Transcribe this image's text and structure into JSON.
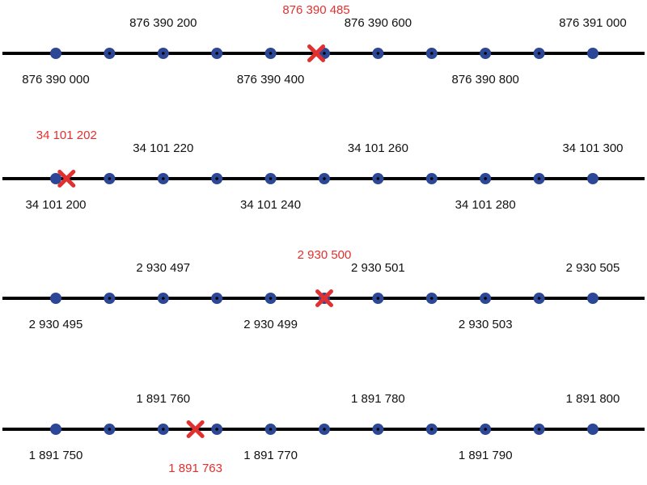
{
  "colors": {
    "line": "#000000",
    "tick": "#2d4797",
    "tick_center": "#000000",
    "label": "#111111",
    "marker": "#e0302f"
  },
  "number_lines": [
    {
      "id": "line-1",
      "ticks": [
        876390000,
        876390100,
        876390200,
        876390300,
        876390400,
        876390500,
        876390600,
        876390700,
        876390800,
        876390900,
        876391000
      ],
      "labels": [
        {
          "text": "876 390 000",
          "tick": 0
        },
        {
          "text": "876 390 200",
          "tick": 2
        },
        {
          "text": "876 390 400",
          "tick": 4
        },
        {
          "text": "876 390 600",
          "tick": 6
        },
        {
          "text": "876 390 800",
          "tick": 8
        },
        {
          "text": "876 391 000",
          "tick": 10
        }
      ],
      "marker": {
        "text": "876 390 485",
        "value": 876390485
      }
    },
    {
      "id": "line-2",
      "ticks": [
        34101200,
        34101210,
        34101220,
        34101230,
        34101240,
        34101250,
        34101260,
        34101270,
        34101280,
        34101290,
        34101300
      ],
      "labels": [
        {
          "text": "34 101 200",
          "tick": 0
        },
        {
          "text": "34 101 220",
          "tick": 2
        },
        {
          "text": "34 101 240",
          "tick": 4
        },
        {
          "text": "34 101 260",
          "tick": 6
        },
        {
          "text": "34 101 280",
          "tick": 8
        },
        {
          "text": "34 101 300",
          "tick": 10
        }
      ],
      "marker": {
        "text": "34 101 202",
        "value": 34101202
      }
    },
    {
      "id": "line-3",
      "ticks": [
        2930495,
        2930496,
        2930497,
        2930498,
        2930499,
        2930500,
        2930501,
        2930502,
        2930503,
        2930504,
        2930505
      ],
      "labels": [
        {
          "text": "2 930 495",
          "tick": 0
        },
        {
          "text": "2 930 497",
          "tick": 2
        },
        {
          "text": "2 930 499",
          "tick": 4
        },
        {
          "text": "2 930 501",
          "tick": 6
        },
        {
          "text": "2 930 503",
          "tick": 8
        },
        {
          "text": "2 930 505",
          "tick": 10
        }
      ],
      "marker": {
        "text": "2 930 500",
        "value": 2930500
      }
    },
    {
      "id": "line-4",
      "ticks": [
        1891750,
        1891755,
        1891760,
        1891765,
        1891770,
        1891775,
        1891780,
        1891785,
        1891790,
        1891795,
        1891800
      ],
      "labels": [
        {
          "text": "1 891 750",
          "tick": 0
        },
        {
          "text": "1 891 760",
          "tick": 2
        },
        {
          "text": "1 891 770",
          "tick": 4
        },
        {
          "text": "1 891 780",
          "tick": 6
        },
        {
          "text": "1 891 790",
          "tick": 8
        },
        {
          "text": "1 891 800",
          "tick": 10
        }
      ],
      "marker": {
        "text": "1 891 763",
        "value": 1891763,
        "label_below": true
      }
    }
  ]
}
